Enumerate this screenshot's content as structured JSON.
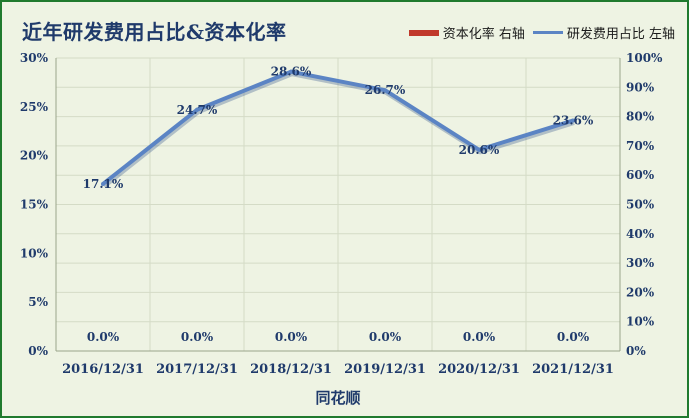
{
  "chart_data": {
    "type": "line",
    "title": "近年研发费用占比&资本化率",
    "xlabel": "同花顺",
    "categories": [
      "2016/12/31",
      "2017/12/31",
      "2018/12/31",
      "2019/12/31",
      "2020/12/31",
      "2021/12/31"
    ],
    "series": [
      {
        "name": "资本化率 右轴",
        "type": "bar",
        "axis": "right",
        "color": "#c0392b",
        "values": [
          0,
          0,
          0,
          0,
          0,
          0
        ],
        "labels": [
          "0.0%",
          "0.0%",
          "0.0%",
          "0.0%",
          "0.0%",
          "0.0%"
        ]
      },
      {
        "name": "研发费用占比 左轴",
        "type": "line",
        "axis": "left",
        "color": "#5b84c4",
        "values": [
          17.1,
          24.7,
          28.6,
          26.7,
          20.6,
          23.6
        ],
        "labels": [
          "17.1%",
          "24.7%",
          "28.6%",
          "26.7%",
          "20.6%",
          "23.6%"
        ]
      }
    ],
    "y_left": {
      "ylim": [
        0,
        30
      ],
      "ticks": [
        "0%",
        "5%",
        "10%",
        "15%",
        "20%",
        "25%",
        "30%"
      ]
    },
    "y_right": {
      "ylim": [
        0,
        100
      ],
      "ticks": [
        "0%",
        "10%",
        "20%",
        "30%",
        "40%",
        "50%",
        "60%",
        "70%",
        "80%",
        "90%",
        "100%"
      ]
    },
    "grid": true,
    "legend_position": "top-right"
  }
}
